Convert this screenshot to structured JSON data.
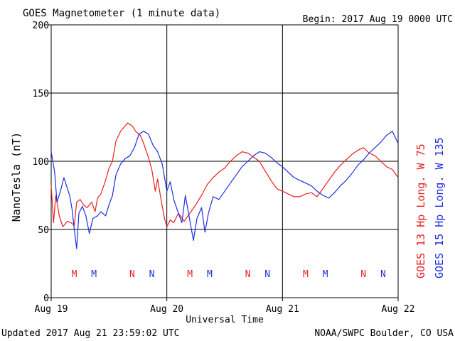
{
  "chart_data": {
    "type": "line",
    "title": "GOES Magnetometer (1 minute data)",
    "begin_label": "Begin:  2017 Aug 19 0000 UTC",
    "xlabel": "Universal Time",
    "ylabel": "NanoTesla (nT)",
    "x_ticks": [
      "Aug 19",
      "Aug 20",
      "Aug 21",
      "Aug 22"
    ],
    "y_ticks": [
      "0",
      "50",
      "100",
      "150",
      "200"
    ],
    "xlim_days": [
      0,
      3
    ],
    "ylim": [
      0,
      200
    ],
    "grid": true,
    "series": [
      {
        "name": "GOES 13 Hp  Long. W 75",
        "color": "#e8201f",
        "points": [
          [
            0.0,
            82
          ],
          [
            0.02,
            55
          ],
          [
            0.04,
            75
          ],
          [
            0.07,
            60
          ],
          [
            0.1,
            52
          ],
          [
            0.14,
            56
          ],
          [
            0.17,
            55
          ],
          [
            0.2,
            53
          ],
          [
            0.22,
            70
          ],
          [
            0.25,
            72
          ],
          [
            0.28,
            68
          ],
          [
            0.31,
            66
          ],
          [
            0.35,
            70
          ],
          [
            0.38,
            63
          ],
          [
            0.4,
            73
          ],
          [
            0.43,
            76
          ],
          [
            0.47,
            86
          ],
          [
            0.5,
            95
          ],
          [
            0.53,
            100
          ],
          [
            0.56,
            115
          ],
          [
            0.6,
            122
          ],
          [
            0.63,
            125
          ],
          [
            0.66,
            128
          ],
          [
            0.7,
            126
          ],
          [
            0.73,
            122
          ],
          [
            0.77,
            119
          ],
          [
            0.8,
            113
          ],
          [
            0.84,
            103
          ],
          [
            0.87,
            94
          ],
          [
            0.9,
            78
          ],
          [
            0.92,
            87
          ],
          [
            0.95,
            72
          ],
          [
            0.98,
            58
          ],
          [
            1.0,
            52
          ],
          [
            1.03,
            57
          ],
          [
            1.06,
            55
          ],
          [
            1.1,
            62
          ],
          [
            1.15,
            56
          ],
          [
            1.2,
            62
          ],
          [
            1.25,
            68
          ],
          [
            1.3,
            75
          ],
          [
            1.35,
            83
          ],
          [
            1.4,
            88
          ],
          [
            1.45,
            92
          ],
          [
            1.5,
            95
          ],
          [
            1.55,
            100
          ],
          [
            1.6,
            104
          ],
          [
            1.65,
            107
          ],
          [
            1.7,
            106
          ],
          [
            1.75,
            103
          ],
          [
            1.8,
            100
          ],
          [
            1.85,
            93
          ],
          [
            1.9,
            86
          ],
          [
            1.95,
            80
          ],
          [
            2.0,
            78
          ],
          [
            2.05,
            76
          ],
          [
            2.1,
            74
          ],
          [
            2.15,
            74
          ],
          [
            2.2,
            76
          ],
          [
            2.25,
            77
          ],
          [
            2.3,
            74
          ],
          [
            2.35,
            80
          ],
          [
            2.4,
            86
          ],
          [
            2.45,
            92
          ],
          [
            2.5,
            97
          ],
          [
            2.55,
            101
          ],
          [
            2.6,
            105
          ],
          [
            2.65,
            108
          ],
          [
            2.7,
            110
          ],
          [
            2.75,
            106
          ],
          [
            2.8,
            104
          ],
          [
            2.85,
            100
          ],
          [
            2.9,
            96
          ],
          [
            2.95,
            94
          ],
          [
            3.0,
            88
          ]
        ]
      },
      {
        "name": "GOES 15 Hp  Long. W 135",
        "color": "#1f2ee0",
        "points": [
          [
            0.0,
            107
          ],
          [
            0.03,
            92
          ],
          [
            0.05,
            70
          ],
          [
            0.08,
            78
          ],
          [
            0.11,
            88
          ],
          [
            0.14,
            80
          ],
          [
            0.16,
            75
          ],
          [
            0.18,
            65
          ],
          [
            0.2,
            50
          ],
          [
            0.22,
            36
          ],
          [
            0.24,
            62
          ],
          [
            0.27,
            67
          ],
          [
            0.3,
            60
          ],
          [
            0.33,
            47
          ],
          [
            0.36,
            58
          ],
          [
            0.4,
            60
          ],
          [
            0.43,
            63
          ],
          [
            0.47,
            60
          ],
          [
            0.5,
            68
          ],
          [
            0.53,
            75
          ],
          [
            0.56,
            90
          ],
          [
            0.6,
            98
          ],
          [
            0.64,
            102
          ],
          [
            0.68,
            104
          ],
          [
            0.72,
            110
          ],
          [
            0.76,
            120
          ],
          [
            0.8,
            122
          ],
          [
            0.84,
            120
          ],
          [
            0.88,
            112
          ],
          [
            0.92,
            107
          ],
          [
            0.96,
            98
          ],
          [
            1.0,
            78
          ],
          [
            1.03,
            85
          ],
          [
            1.06,
            72
          ],
          [
            1.1,
            62
          ],
          [
            1.13,
            55
          ],
          [
            1.16,
            75
          ],
          [
            1.2,
            56
          ],
          [
            1.23,
            42
          ],
          [
            1.26,
            58
          ],
          [
            1.3,
            66
          ],
          [
            1.33,
            48
          ],
          [
            1.36,
            62
          ],
          [
            1.4,
            74
          ],
          [
            1.45,
            72
          ],
          [
            1.5,
            78
          ],
          [
            1.55,
            84
          ],
          [
            1.6,
            90
          ],
          [
            1.65,
            96
          ],
          [
            1.7,
            100
          ],
          [
            1.75,
            104
          ],
          [
            1.8,
            107
          ],
          [
            1.85,
            106
          ],
          [
            1.9,
            103
          ],
          [
            1.95,
            99
          ],
          [
            2.0,
            96
          ],
          [
            2.05,
            92
          ],
          [
            2.1,
            88
          ],
          [
            2.15,
            86
          ],
          [
            2.2,
            84
          ],
          [
            2.25,
            82
          ],
          [
            2.3,
            78
          ],
          [
            2.35,
            75
          ],
          [
            2.4,
            73
          ],
          [
            2.45,
            77
          ],
          [
            2.5,
            82
          ],
          [
            2.55,
            86
          ],
          [
            2.6,
            91
          ],
          [
            2.65,
            97
          ],
          [
            2.7,
            101
          ],
          [
            2.75,
            106
          ],
          [
            2.8,
            110
          ],
          [
            2.85,
            114
          ],
          [
            2.9,
            119
          ],
          [
            2.95,
            122
          ],
          [
            3.0,
            113
          ]
        ]
      }
    ],
    "markers": [
      {
        "label": "M",
        "day": 0.2,
        "color": "#e8201f"
      },
      {
        "label": "M",
        "day": 0.37,
        "color": "#1f2ee0"
      },
      {
        "label": "N",
        "day": 0.7,
        "color": "#e8201f"
      },
      {
        "label": "N",
        "day": 0.87,
        "color": "#1f2ee0"
      },
      {
        "label": "M",
        "day": 1.2,
        "color": "#e8201f"
      },
      {
        "label": "M",
        "day": 1.37,
        "color": "#1f2ee0"
      },
      {
        "label": "N",
        "day": 1.7,
        "color": "#e8201f"
      },
      {
        "label": "N",
        "day": 1.87,
        "color": "#1f2ee0"
      },
      {
        "label": "M",
        "day": 2.2,
        "color": "#e8201f"
      },
      {
        "label": "M",
        "day": 2.37,
        "color": "#1f2ee0"
      },
      {
        "label": "N",
        "day": 2.7,
        "color": "#e8201f"
      },
      {
        "label": "N",
        "day": 2.87,
        "color": "#1f2ee0"
      }
    ]
  },
  "footer": {
    "updated": "Updated 2017 Aug 21 23:59:02 UTC",
    "credit": "NOAA/SWPC Boulder, CO USA"
  }
}
